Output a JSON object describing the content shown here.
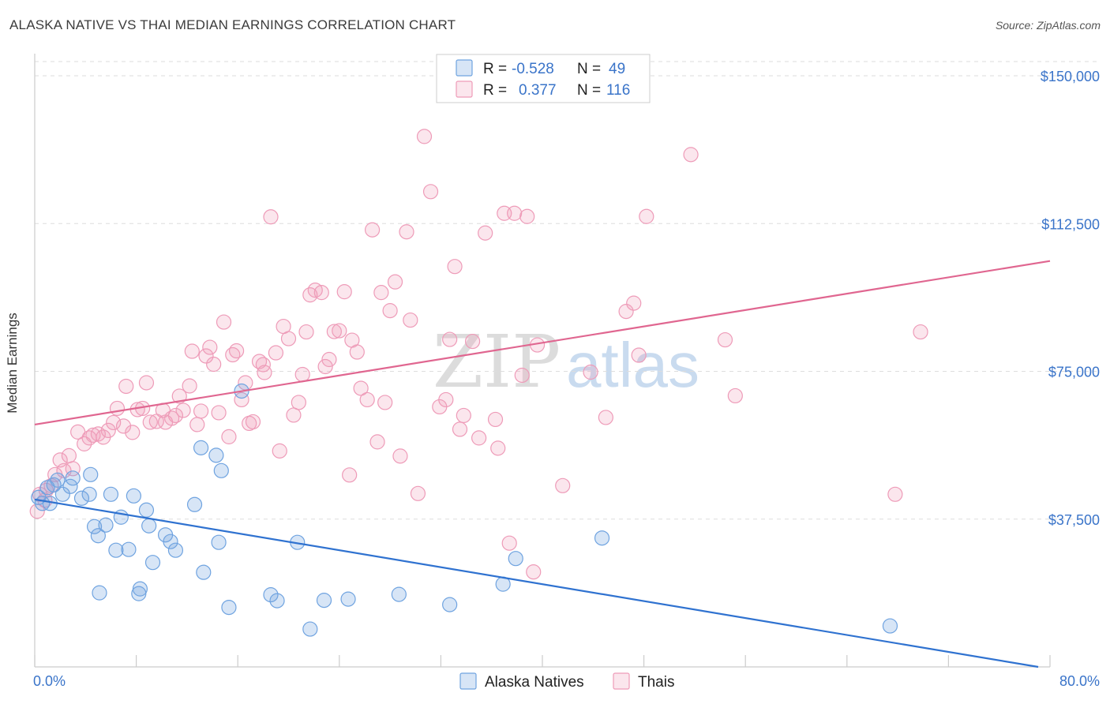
{
  "title": "ALASKA NATIVE VS THAI MEDIAN EARNINGS CORRELATION CHART",
  "source": "Source: ZipAtlas.com",
  "watermark": {
    "zip": "ZIP",
    "atlas": "atlas"
  },
  "colors": {
    "blue": "#6fa3e0",
    "blue_fill": "rgba(111,163,224,0.28)",
    "blue_line": "#2f72d0",
    "pink": "#ee9bb8",
    "pink_fill": "rgba(238,155,184,0.25)",
    "pink_line": "#e06690",
    "grid": "#dddddd",
    "tick_text": "#3a74c9"
  },
  "legend": {
    "rows": [
      {
        "r_label": "R =",
        "r_value": "-0.528",
        "n_label": "N =",
        "n_value": "49"
      },
      {
        "r_label": "R =",
        "r_value": "0.377",
        "n_label": "N =",
        "n_value": "116"
      }
    ]
  },
  "chart_data": {
    "type": "scatter",
    "title": "ALASKA NATIVE VS THAI MEDIAN EARNINGS CORRELATION CHART",
    "xlabel": "",
    "ylabel": "Median Earnings",
    "xlim": [
      0,
      80
    ],
    "ylim": [
      0,
      155000
    ],
    "x_tick_labels": [
      "0.0%",
      "80.0%"
    ],
    "y_ticks": [
      {
        "value": 37500,
        "label": "$37,500"
      },
      {
        "value": 75000,
        "label": "$75,000"
      },
      {
        "value": 112500,
        "label": "$112,500"
      },
      {
        "value": 150000,
        "label": "$150,000"
      }
    ],
    "grid": true,
    "legend_position": "bottom",
    "series": [
      {
        "name": "Alaska Natives",
        "color": "#6fa3e0",
        "trend": {
          "x": [
            0,
            80
          ],
          "y": [
            42500,
            -500
          ]
        },
        "points": [
          [
            0.3,
            43000
          ],
          [
            0.6,
            41500
          ],
          [
            1.0,
            45500
          ],
          [
            1.5,
            46200
          ],
          [
            1.8,
            47400
          ],
          [
            2.2,
            43800
          ],
          [
            2.8,
            45800
          ],
          [
            3.0,
            47900
          ],
          [
            3.7,
            42800
          ],
          [
            4.3,
            43800
          ],
          [
            4.7,
            35600
          ],
          [
            5.0,
            33300
          ],
          [
            5.6,
            36000
          ],
          [
            6.0,
            43800
          ],
          [
            6.4,
            29600
          ],
          [
            6.8,
            38000
          ],
          [
            7.4,
            29800
          ],
          [
            7.8,
            43400
          ],
          [
            8.2,
            18600
          ],
          [
            8.3,
            19800
          ],
          [
            8.8,
            39800
          ],
          [
            9.0,
            35800
          ],
          [
            9.3,
            26500
          ],
          [
            10.3,
            33500
          ],
          [
            10.7,
            31800
          ],
          [
            11.1,
            29600
          ],
          [
            12.6,
            41200
          ],
          [
            13.1,
            55600
          ],
          [
            13.3,
            24000
          ],
          [
            14.3,
            53700
          ],
          [
            14.5,
            31600
          ],
          [
            14.7,
            49800
          ],
          [
            15.3,
            15100
          ],
          [
            16.3,
            70000
          ],
          [
            18.6,
            18300
          ],
          [
            19.1,
            16800
          ],
          [
            20.7,
            31600
          ],
          [
            21.7,
            9600
          ],
          [
            22.8,
            16900
          ],
          [
            24.7,
            17200
          ],
          [
            28.7,
            18400
          ],
          [
            32.7,
            15800
          ],
          [
            36.9,
            21000
          ],
          [
            37.9,
            27500
          ],
          [
            44.7,
            32700
          ],
          [
            67.4,
            10400
          ],
          [
            5.1,
            18800
          ],
          [
            4.4,
            48800
          ],
          [
            1.2,
            41500
          ]
        ]
      },
      {
        "name": "Thais",
        "color": "#ee9bb8",
        "trend": {
          "x": [
            0,
            80
          ],
          "y": [
            61500,
            103000
          ]
        },
        "points": [
          [
            0.2,
            39500
          ],
          [
            0.4,
            43800
          ],
          [
            0.8,
            42300
          ],
          [
            1.3,
            46000
          ],
          [
            1.6,
            48800
          ],
          [
            2.0,
            52500
          ],
          [
            2.3,
            49800
          ],
          [
            2.7,
            53600
          ],
          [
            3.0,
            50300
          ],
          [
            3.4,
            59600
          ],
          [
            3.9,
            56600
          ],
          [
            4.3,
            58100
          ],
          [
            4.6,
            58800
          ],
          [
            5.0,
            59100
          ],
          [
            5.4,
            58300
          ],
          [
            5.8,
            60000
          ],
          [
            6.2,
            62000
          ],
          [
            6.5,
            65600
          ],
          [
            7.0,
            61100
          ],
          [
            7.2,
            71200
          ],
          [
            7.7,
            59500
          ],
          [
            8.1,
            65300
          ],
          [
            8.5,
            65600
          ],
          [
            8.8,
            72100
          ],
          [
            9.1,
            62100
          ],
          [
            9.6,
            62300
          ],
          [
            10.1,
            65100
          ],
          [
            10.3,
            62100
          ],
          [
            10.8,
            63100
          ],
          [
            11.1,
            63800
          ],
          [
            11.4,
            68700
          ],
          [
            11.7,
            65100
          ],
          [
            12.2,
            71300
          ],
          [
            12.4,
            80100
          ],
          [
            12.8,
            61500
          ],
          [
            13.1,
            64900
          ],
          [
            13.5,
            78900
          ],
          [
            13.8,
            81100
          ],
          [
            14.1,
            76800
          ],
          [
            14.5,
            64500
          ],
          [
            14.9,
            87500
          ],
          [
            15.3,
            58400
          ],
          [
            15.6,
            79200
          ],
          [
            15.9,
            80200
          ],
          [
            16.3,
            67800
          ],
          [
            16.6,
            72100
          ],
          [
            16.9,
            61800
          ],
          [
            17.2,
            62200
          ],
          [
            17.7,
            77500
          ],
          [
            18.0,
            76700
          ],
          [
            18.1,
            74700
          ],
          [
            18.6,
            114200
          ],
          [
            19.0,
            79700
          ],
          [
            19.3,
            54800
          ],
          [
            19.6,
            86400
          ],
          [
            20.0,
            83300
          ],
          [
            20.4,
            63900
          ],
          [
            20.8,
            67100
          ],
          [
            21.1,
            74200
          ],
          [
            21.4,
            85000
          ],
          [
            21.7,
            94400
          ],
          [
            22.1,
            95600
          ],
          [
            22.6,
            95000
          ],
          [
            22.9,
            76200
          ],
          [
            23.2,
            78000
          ],
          [
            23.6,
            85100
          ],
          [
            24.0,
            85300
          ],
          [
            24.4,
            95200
          ],
          [
            24.8,
            48700
          ],
          [
            25.0,
            82900
          ],
          [
            25.4,
            79900
          ],
          [
            25.7,
            70700
          ],
          [
            26.2,
            67800
          ],
          [
            26.6,
            110900
          ],
          [
            27.0,
            57100
          ],
          [
            27.3,
            95000
          ],
          [
            27.6,
            67100
          ],
          [
            28.0,
            90400
          ],
          [
            28.4,
            97700
          ],
          [
            28.8,
            53500
          ],
          [
            29.3,
            110400
          ],
          [
            29.6,
            88000
          ],
          [
            30.2,
            44000
          ],
          [
            30.7,
            134600
          ],
          [
            31.2,
            120600
          ],
          [
            31.9,
            66000
          ],
          [
            32.4,
            67800
          ],
          [
            32.7,
            83100
          ],
          [
            33.1,
            101600
          ],
          [
            33.5,
            60300
          ],
          [
            33.8,
            63800
          ],
          [
            34.5,
            82600
          ],
          [
            35.0,
            58100
          ],
          [
            35.5,
            110100
          ],
          [
            36.3,
            62800
          ],
          [
            36.5,
            55500
          ],
          [
            37.0,
            115100
          ],
          [
            37.4,
            31400
          ],
          [
            37.8,
            115100
          ],
          [
            38.4,
            74000
          ],
          [
            38.8,
            114300
          ],
          [
            39.3,
            24100
          ],
          [
            39.6,
            81700
          ],
          [
            41.6,
            46000
          ],
          [
            43.8,
            74800
          ],
          [
            45.0,
            63300
          ],
          [
            46.6,
            90200
          ],
          [
            47.2,
            92300
          ],
          [
            47.6,
            79100
          ],
          [
            48.2,
            114300
          ],
          [
            51.7,
            130000
          ],
          [
            54.4,
            83000
          ],
          [
            55.2,
            68800
          ],
          [
            67.8,
            43800
          ],
          [
            69.8,
            85000
          ],
          [
            0.9,
            44800
          ]
        ]
      }
    ]
  },
  "bottom_legend": [
    {
      "label": "Alaska Natives"
    },
    {
      "label": "Thais"
    }
  ]
}
